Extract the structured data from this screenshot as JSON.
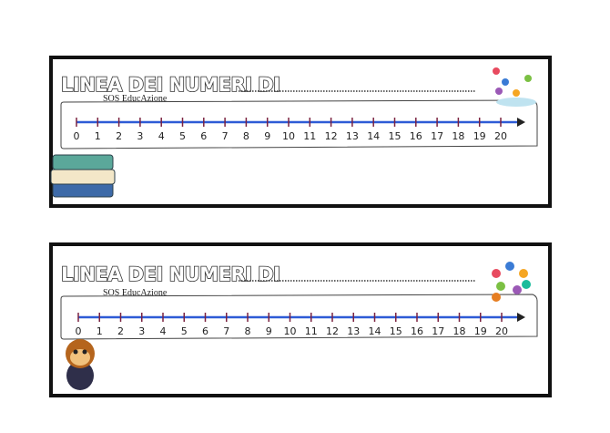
{
  "cards": [
    {
      "title": "LINEA DEI NUMERI DI",
      "brand": "SOS EducAzione"
    },
    {
      "title": "LINEA DEI NUMERI DI",
      "brand": "SOS EducAzione"
    }
  ],
  "numbers": [
    0,
    1,
    2,
    3,
    4,
    5,
    6,
    7,
    8,
    9,
    10,
    11,
    12,
    13,
    14,
    15,
    16,
    17,
    18,
    19,
    20
  ]
}
